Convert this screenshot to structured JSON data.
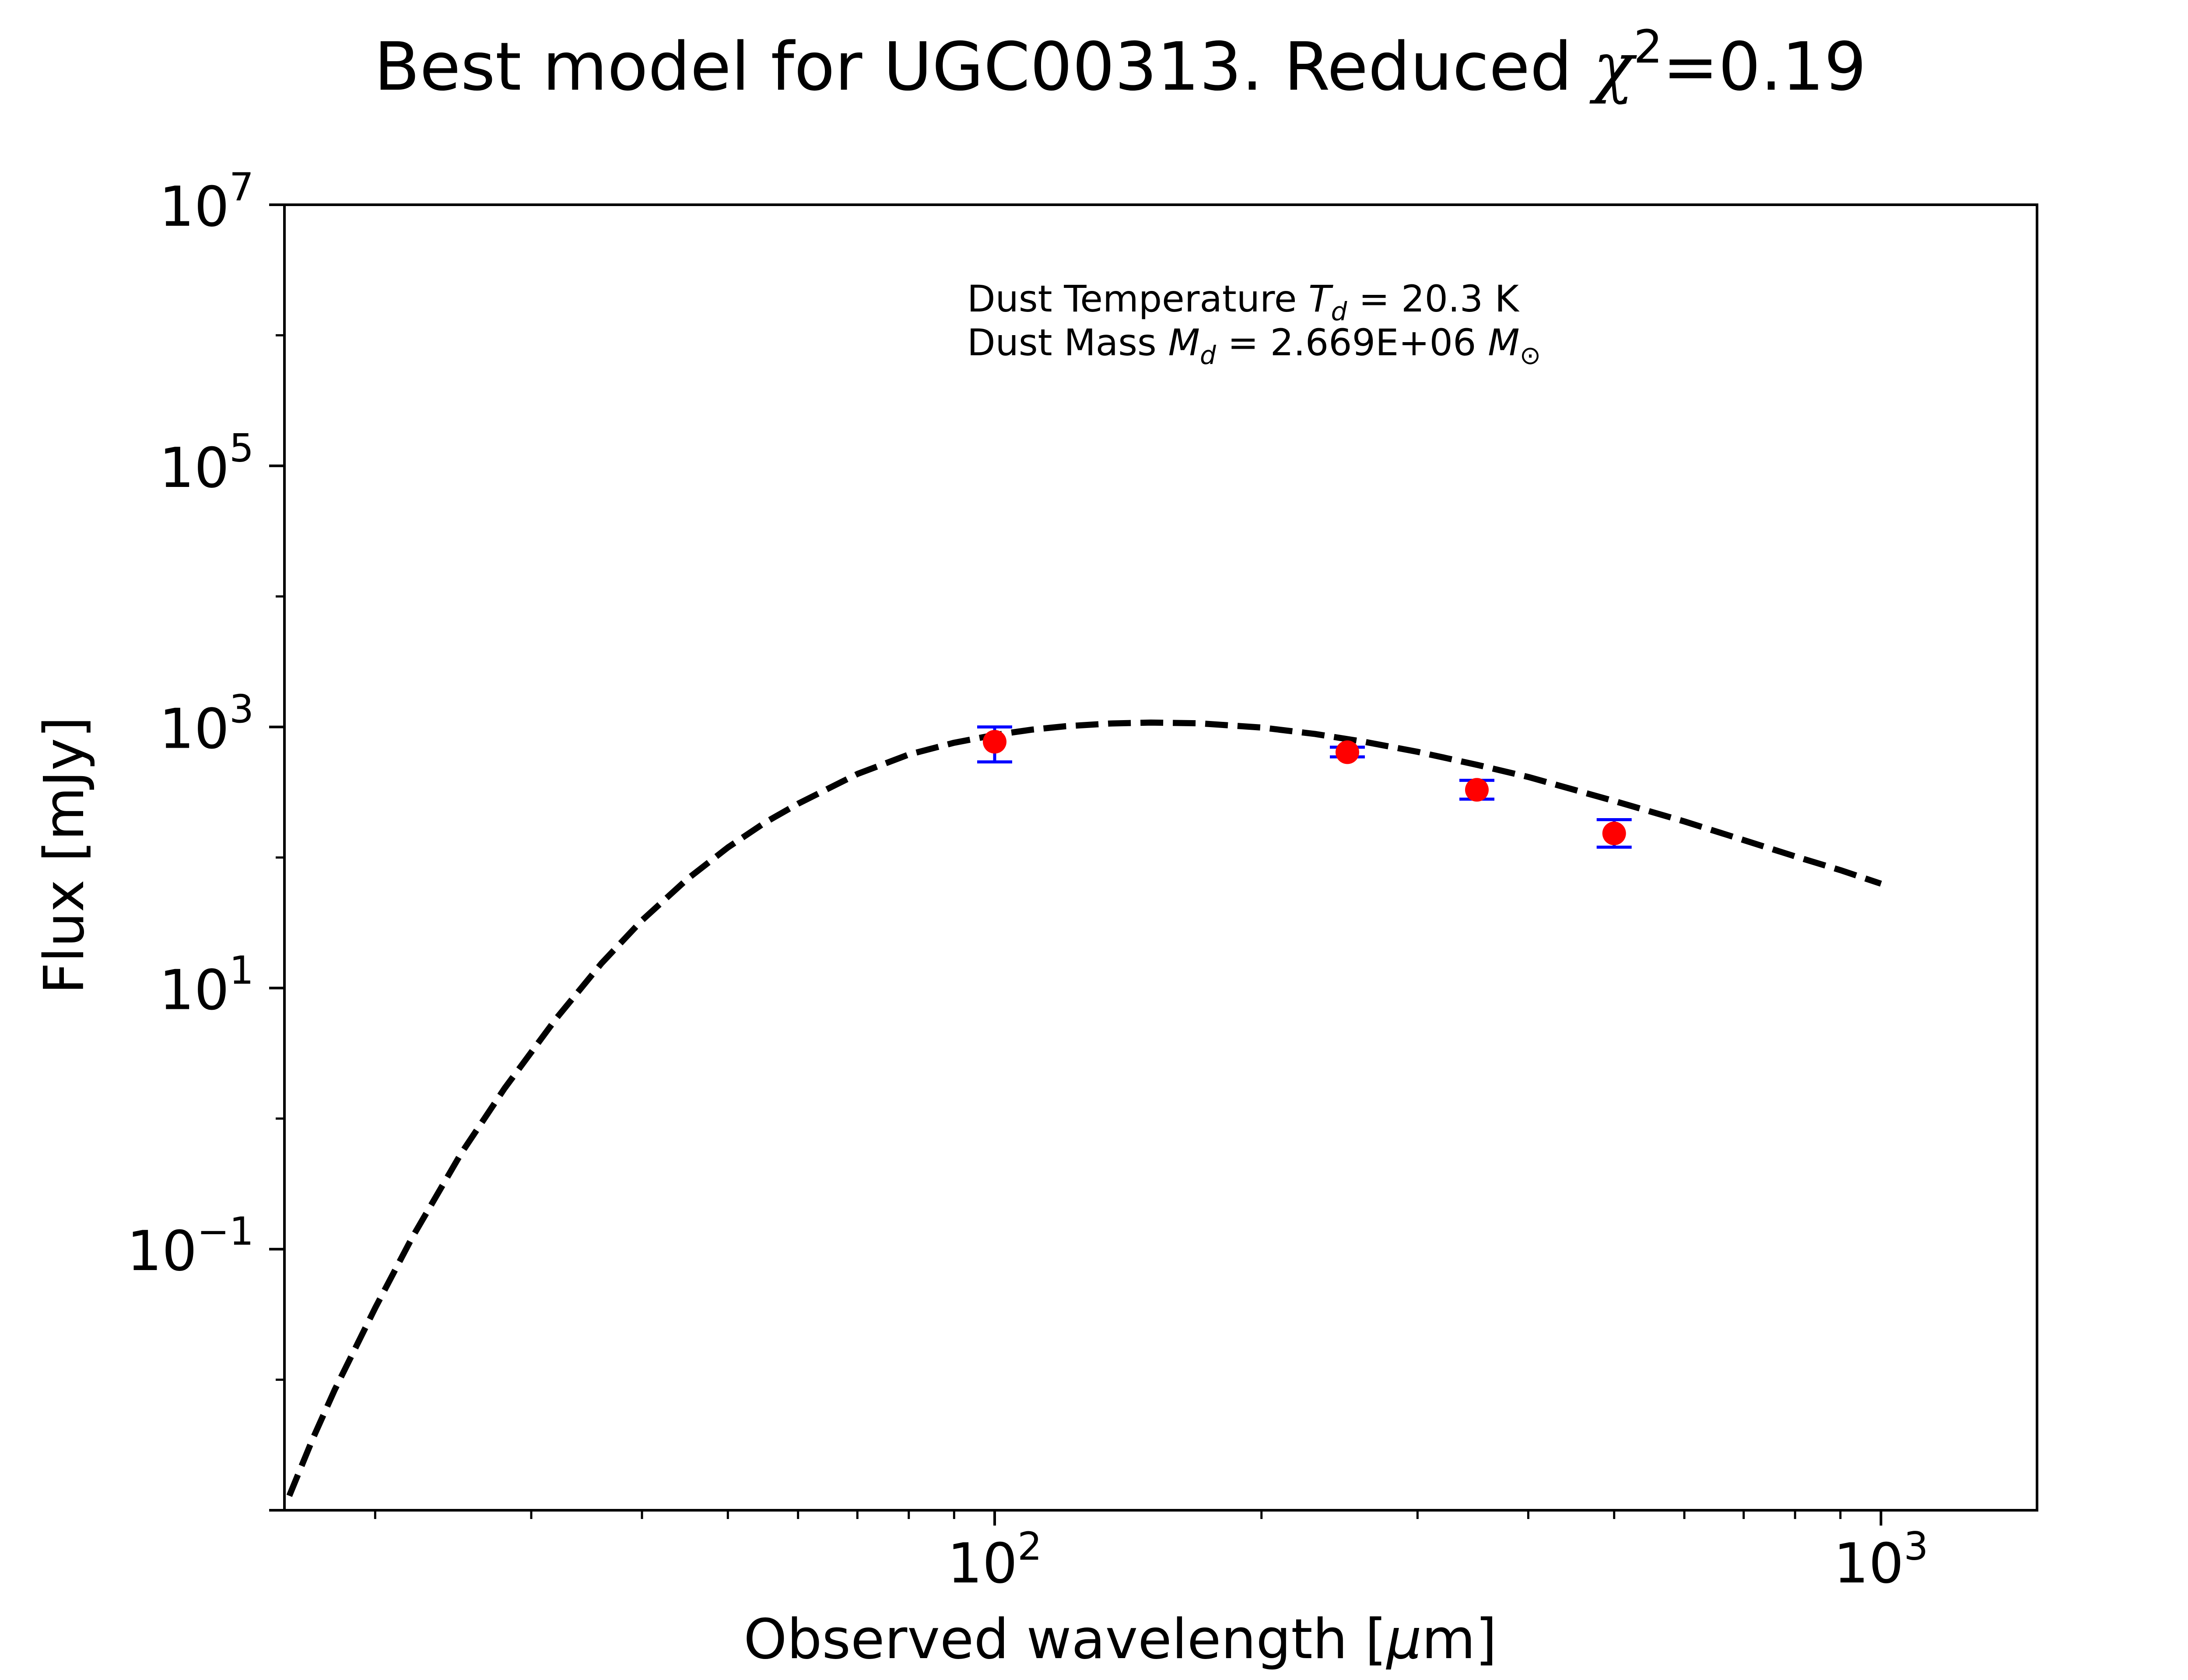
{
  "chart_data": {
    "type": "scatter",
    "title": {
      "prefix": "Best model for UGC00313. Reduced ",
      "symbol": "χ",
      "exponent": "2",
      "suffix": "=0.19"
    },
    "xlabel": {
      "prefix": "Observed wavelength [",
      "symbol": "μ",
      "suffix": "m]"
    },
    "ylabel": "Flux [mJy]",
    "xscale": "log",
    "yscale": "log",
    "xlim": [
      15.8,
      1500
    ],
    "ylim": [
      0.001,
      10000000
    ],
    "x_ticks": [
      {
        "value": 100,
        "base": "10",
        "exp": "2"
      },
      {
        "value": 1000,
        "base": "10",
        "exp": "3"
      }
    ],
    "y_ticks": [
      {
        "value": 10000000,
        "base": "10",
        "exp": "7"
      },
      {
        "value": 100000,
        "base": "10",
        "exp": "5"
      },
      {
        "value": 1000,
        "base": "10",
        "exp": "3"
      },
      {
        "value": 10,
        "base": "10",
        "exp": "1"
      },
      {
        "value": 0.1,
        "base": "10",
        "exp": "−1"
      }
    ],
    "annotation": {
      "line1": {
        "prefix": "Dust Temperature ",
        "symbol": "T",
        "subscript": "d",
        "suffix": " = 20.3 K"
      },
      "line2": {
        "prefix": "Dust Mass ",
        "symbol": "M",
        "subscript": "d",
        "middle": " = 2.669E+06 ",
        "unit": "M",
        "unit_subscript": "⊙"
      }
    },
    "series": [
      {
        "kind": "observed",
        "x": [
          100,
          250,
          350,
          500
        ],
        "y": [
          770,
          640,
          330,
          153
        ],
        "yerr_low": [
          540,
          590,
          280,
          120
        ],
        "yerr_high": [
          1000,
          700,
          390,
          195
        ],
        "marker_color": "#ff0000",
        "errorbar_color": "#0000ff"
      },
      {
        "kind": "model",
        "x": [
          16,
          17,
          18,
          20,
          22,
          25,
          28,
          32,
          36,
          40,
          45,
          50,
          55,
          60,
          70,
          80,
          90,
          100,
          110,
          120,
          135,
          150,
          170,
          200,
          230,
          260,
          300,
          350,
          400,
          500,
          600,
          700,
          800,
          900,
          1000
        ],
        "y": [
          0.00129,
          0.00351,
          0.00834,
          0.0354,
          0.1216,
          0.5397,
          1.709,
          5.83,
          15.44,
          32.99,
          68.36,
          119.3,
          184.3,
          258.2,
          436.3,
          614.4,
          757.1,
          868.4,
          952.6,
          1012,
          1063,
          1080,
          1066,
          990,
          883,
          774,
          645,
          513,
          414,
          271,
          189,
          136,
          102,
          80,
          63
        ],
        "line_color": "#000000",
        "line_style": "dashed"
      }
    ]
  }
}
